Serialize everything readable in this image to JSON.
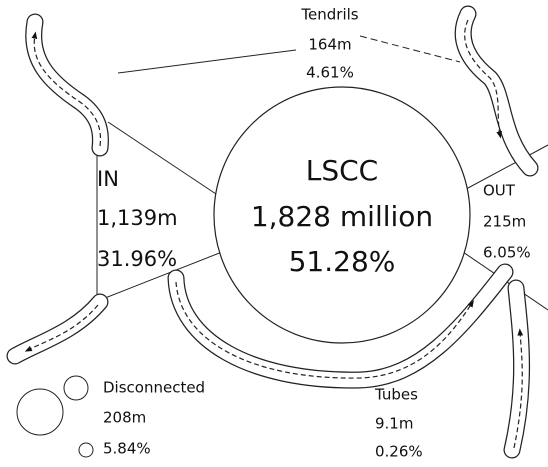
{
  "nodes": [
    {
      "label": "LSCC",
      "size": "1,828 million",
      "share": "51.28%"
    },
    {
      "label": "IN",
      "size": "1,139m",
      "share": "31.96%"
    },
    {
      "label": "OUT",
      "size": "215m",
      "share": "6.05%"
    },
    {
      "label": "Tendrils",
      "size": "164m",
      "share": "4.61%"
    },
    {
      "label": "Tubes",
      "size": "9.1m",
      "share": "0.26%"
    },
    {
      "label": "Disconnected",
      "size": "208m",
      "share": "5.84%"
    }
  ]
}
